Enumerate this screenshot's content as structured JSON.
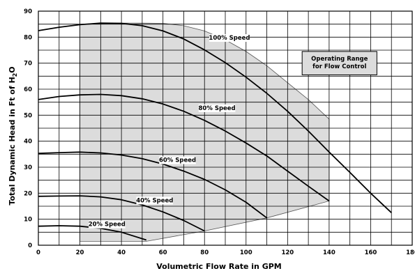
{
  "chart_data": {
    "type": "line",
    "xlabel": "Volumetric Flow Rate in GPM",
    "ylabel": "Total Dynamic Head in Ft of H",
    "ylabel_sub": "2",
    "ylabel_end": "O",
    "xlim": [
      0,
      180
    ],
    "ylim": [
      0,
      90
    ],
    "x_ticks": [
      "0",
      "20",
      "40",
      "60",
      "80",
      "100",
      "120",
      "140",
      "160",
      "180"
    ],
    "y_ticks": [
      "0",
      "10",
      "20",
      "30",
      "40",
      "50",
      "60",
      "70",
      "80",
      "90"
    ],
    "grid": true,
    "series": [
      {
        "name": "100% Speed",
        "points": [
          [
            0,
            82.5
          ],
          [
            10,
            83.8
          ],
          [
            20,
            84.8
          ],
          [
            30,
            85.4
          ],
          [
            40,
            85.3
          ],
          [
            50,
            84.4
          ],
          [
            60,
            82.4
          ],
          [
            70,
            79.3
          ],
          [
            80,
            75.1
          ],
          [
            90,
            70.2
          ],
          [
            100,
            64.6
          ],
          [
            110,
            58.4
          ],
          [
            120,
            51.5
          ],
          [
            130,
            43.9
          ],
          [
            140,
            35.8
          ],
          [
            150,
            28.0
          ],
          [
            160,
            20.0
          ],
          [
            170,
            12.5
          ]
        ]
      },
      {
        "name": "80% Speed",
        "points": [
          [
            0,
            56
          ],
          [
            10,
            57.2
          ],
          [
            20,
            57.8
          ],
          [
            30,
            58
          ],
          [
            40,
            57.5
          ],
          [
            50,
            56.3
          ],
          [
            60,
            54.3
          ],
          [
            70,
            51.5
          ],
          [
            80,
            48
          ],
          [
            90,
            43.9
          ],
          [
            100,
            39.3
          ],
          [
            110,
            34.3
          ],
          [
            120,
            28.5
          ],
          [
            130,
            22.7
          ],
          [
            140,
            17
          ]
        ]
      },
      {
        "name": "60% Speed",
        "points": [
          [
            0,
            35.3
          ],
          [
            10,
            35.6
          ],
          [
            20,
            35.8
          ],
          [
            30,
            35.5
          ],
          [
            40,
            34.7
          ],
          [
            50,
            33.3
          ],
          [
            60,
            31.2
          ],
          [
            70,
            28.5
          ],
          [
            80,
            25.3
          ],
          [
            90,
            21.3
          ],
          [
            100,
            16.5
          ],
          [
            110,
            10.5
          ]
        ]
      },
      {
        "name": "40% Speed",
        "points": [
          [
            0,
            18.8
          ],
          [
            10,
            18.9
          ],
          [
            20,
            19
          ],
          [
            30,
            18.6
          ],
          [
            40,
            17.5
          ],
          [
            50,
            15.5
          ],
          [
            60,
            12.8
          ],
          [
            70,
            9.5
          ],
          [
            80,
            5.5
          ]
        ]
      },
      {
        "name": "20% Speed",
        "points": [
          [
            0,
            7.3
          ],
          [
            10,
            7.5
          ],
          [
            20,
            7.3
          ],
          [
            30,
            6.5
          ],
          [
            40,
            5
          ],
          [
            52,
            2
          ]
        ]
      }
    ],
    "shaded_region": {
      "name": "Operating Range for Flow Control",
      "points": [
        [
          20,
          1.5
        ],
        [
          52,
          1.5
        ],
        [
          80,
          5.5
        ],
        [
          110,
          10.5
        ],
        [
          140,
          17
        ],
        [
          140,
          48.5
        ],
        [
          130,
          56
        ],
        [
          120,
          62.5
        ],
        [
          110,
          69
        ],
        [
          100,
          74.5
        ],
        [
          90,
          79
        ],
        [
          80,
          82.4
        ],
        [
          70,
          84.4
        ],
        [
          60,
          85.3
        ],
        [
          50,
          85.4
        ],
        [
          40,
          85.4
        ],
        [
          30,
          85.2
        ],
        [
          20,
          84.8
        ]
      ],
      "fill": "#dcdcdc"
    },
    "labels": [
      {
        "text": "100% Speed",
        "x": 92,
        "y": 79
      },
      {
        "text": "80% Speed",
        "x": 86,
        "y": 52
      },
      {
        "text": "60% Speed",
        "x": 67,
        "y": 32
      },
      {
        "text": "40% Speed",
        "x": 56,
        "y": 16.5
      },
      {
        "text": "20% Speed",
        "x": 33,
        "y": 7.3
      }
    ],
    "legend": {
      "lines": [
        "Operating Range",
        "for Flow Control"
      ],
      "position": "top-right",
      "fill": "#dcdcdc"
    }
  }
}
